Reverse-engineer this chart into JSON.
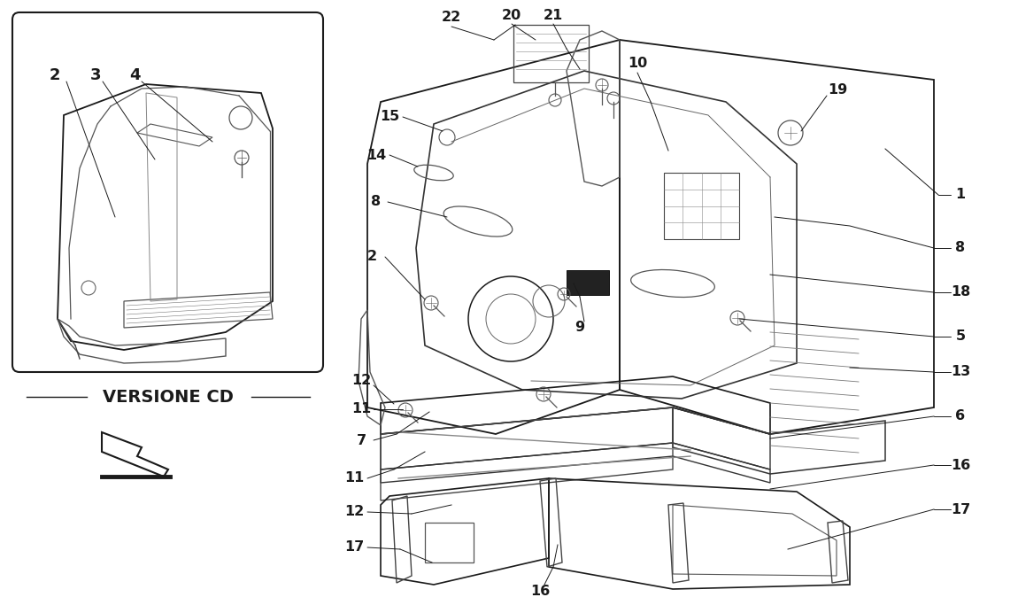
{
  "bg_color": "#ffffff",
  "fig_width": 11.5,
  "fig_height": 6.83,
  "dpi": 100
}
